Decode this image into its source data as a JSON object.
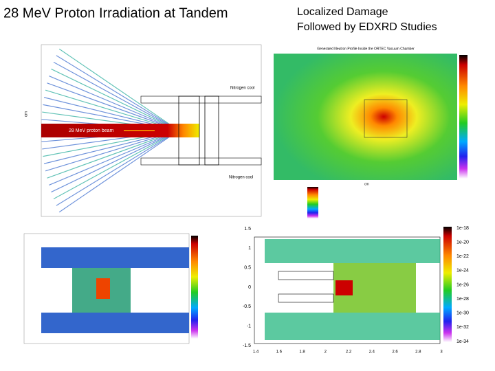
{
  "header": {
    "title": "28 MeV Proton Irradiation at Tandem",
    "subtitle_lines": [
      "Localized Damage",
      "Followed by EDXRD Studies"
    ]
  },
  "panels": {
    "beam_plot": {
      "labels": [
        "Nitrogen cool",
        "28 MeV proton beam",
        "Nitrogen cool"
      ],
      "y_axis": "cm"
    },
    "neutron_plot": {
      "title": "Generated Neutron Profile Inside the ORTEC Vacuum Chamber",
      "x_axis": "cm"
    },
    "detail_plot": {
      "yticks": [
        "1.5",
        "1",
        "0.5",
        "0",
        "-0.5",
        "-1",
        "-1.5"
      ],
      "xticks": [
        "1.4",
        "1.6",
        "1.8",
        "2",
        "2.2",
        "2.4",
        "2.6",
        "2.8",
        "3"
      ],
      "colorbar": [
        "1e-18",
        "1e-20",
        "1e-22",
        "1e-24",
        "1e-26",
        "1e-28",
        "1e-30",
        "1e-32",
        "1e-34"
      ]
    }
  }
}
